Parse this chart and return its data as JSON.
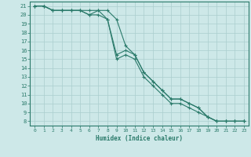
{
  "xlabel": "Humidex (Indice chaleur)",
  "xlim": [
    -0.5,
    23.5
  ],
  "ylim": [
    7.5,
    21.5
  ],
  "yticks": [
    8,
    9,
    10,
    11,
    12,
    13,
    14,
    15,
    16,
    17,
    18,
    19,
    20,
    21
  ],
  "xticks": [
    0,
    1,
    2,
    3,
    4,
    5,
    6,
    7,
    8,
    9,
    10,
    11,
    12,
    13,
    14,
    15,
    16,
    17,
    18,
    19,
    20,
    21,
    22,
    23
  ],
  "bg_color": "#cde8e8",
  "grid_color": "#aacece",
  "line_color": "#2a7a6a",
  "series1_x": [
    0,
    1,
    2,
    3,
    4,
    5,
    6,
    7,
    8,
    9,
    10,
    11,
    12,
    13,
    14,
    15,
    16,
    17,
    18,
    19,
    20,
    21,
    22,
    23
  ],
  "series1_y": [
    21.0,
    21.0,
    20.5,
    20.5,
    20.5,
    20.5,
    20.5,
    20.5,
    20.5,
    19.5,
    16.5,
    15.5,
    13.5,
    12.5,
    11.5,
    10.5,
    10.5,
    10.0,
    9.5,
    8.5,
    8.0,
    8.0,
    8.0,
    8.0
  ],
  "series2_x": [
    0,
    1,
    2,
    3,
    4,
    5,
    6,
    7,
    8,
    9,
    10,
    11,
    12,
    13,
    14,
    15,
    16,
    17,
    18,
    19,
    20,
    21,
    22,
    23
  ],
  "series2_y": [
    21.0,
    21.0,
    20.5,
    20.5,
    20.5,
    20.5,
    20.0,
    20.0,
    19.5,
    15.5,
    16.0,
    15.5,
    13.5,
    12.5,
    11.5,
    10.5,
    10.5,
    10.0,
    9.5,
    8.5,
    8.0,
    8.0,
    8.0,
    8.0
  ],
  "series3_x": [
    0,
    1,
    2,
    3,
    4,
    5,
    6,
    7,
    8,
    9,
    10,
    11,
    12,
    13,
    14,
    15,
    16,
    17,
    18,
    19,
    20,
    21,
    22,
    23
  ],
  "series3_y": [
    21.0,
    21.0,
    20.5,
    20.5,
    20.5,
    20.5,
    20.0,
    20.5,
    19.5,
    15.0,
    15.5,
    15.0,
    13.0,
    12.0,
    11.0,
    10.0,
    10.0,
    9.5,
    9.0,
    8.5,
    8.0,
    8.0,
    8.0,
    8.0
  ]
}
